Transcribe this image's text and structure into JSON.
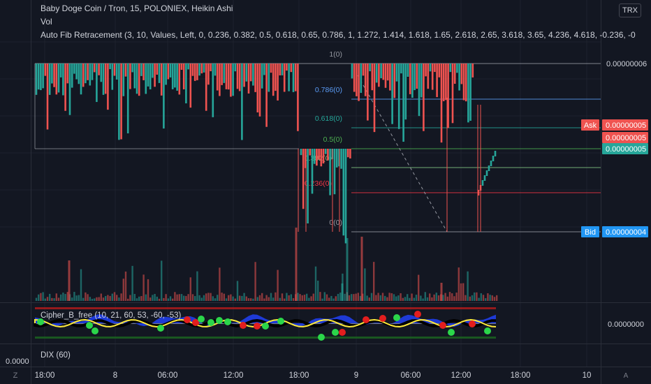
{
  "header": {
    "title": "Baby Doge Coin / Tron, 15, POLONIEX, Heikin Ashi",
    "vol_label": "Vol",
    "fib_label": "Auto Fib Retracement (3, 10, Values, Left, 0, 0.236, 0.382, 0.5, 0.618, 0.65, 0.786, 1, 1.272, 1.414, 1.618, 1.65, 2.618, 2.65, 3.618, 3.65, 4.236, 4.618, -0.236, -0"
  },
  "symbol_badge": "TRX",
  "chart_data": {
    "type": "candlestick",
    "chart_style": "Heikin Ashi",
    "y_axis": {
      "labels": [
        "0.00000006",
        "0.00000005",
        "0.00000005",
        "0.00000004"
      ]
    },
    "x_axis": {
      "ticks": [
        "18:00",
        "8",
        "06:00",
        "12:00",
        "18:00",
        "9",
        "06:00",
        "12:00",
        "18:00",
        "10"
      ]
    },
    "price_tags": [
      {
        "name": "Ask",
        "value": "0.00000005",
        "color": "#ef5350"
      },
      {
        "name": "",
        "value": "0.00000005",
        "color": "#26a69a"
      },
      {
        "name": "Bid",
        "value": "0.00000004",
        "color": "#2196f3"
      }
    ],
    "fib_levels": [
      {
        "label": "1(0)",
        "color": "#9598a1"
      },
      {
        "label": "0.786(0)",
        "color": "#5b9cf6"
      },
      {
        "label": "0.618(0)",
        "color": "#26a69a"
      },
      {
        "label": "0.5(0)",
        "color": "#4caf50"
      },
      {
        "label": "0.382(0)",
        "color": "#81c784"
      },
      {
        "label": "0.236(0)",
        "color": "#f23645"
      },
      {
        "label": "0(0)",
        "color": "#9598a1"
      }
    ],
    "candle_colors": {
      "up": "#26a69a",
      "down": "#ef5350"
    }
  },
  "indicators": {
    "cipher": {
      "label": "Cipher_B_free (10, 21, 60, 53, -60, -53)",
      "axis_value": "0.0000000"
    },
    "dix": {
      "label": "DIX (60)",
      "axis_value": "0.0000"
    }
  },
  "bottom_icons": {
    "left": "Z",
    "right": "A"
  }
}
